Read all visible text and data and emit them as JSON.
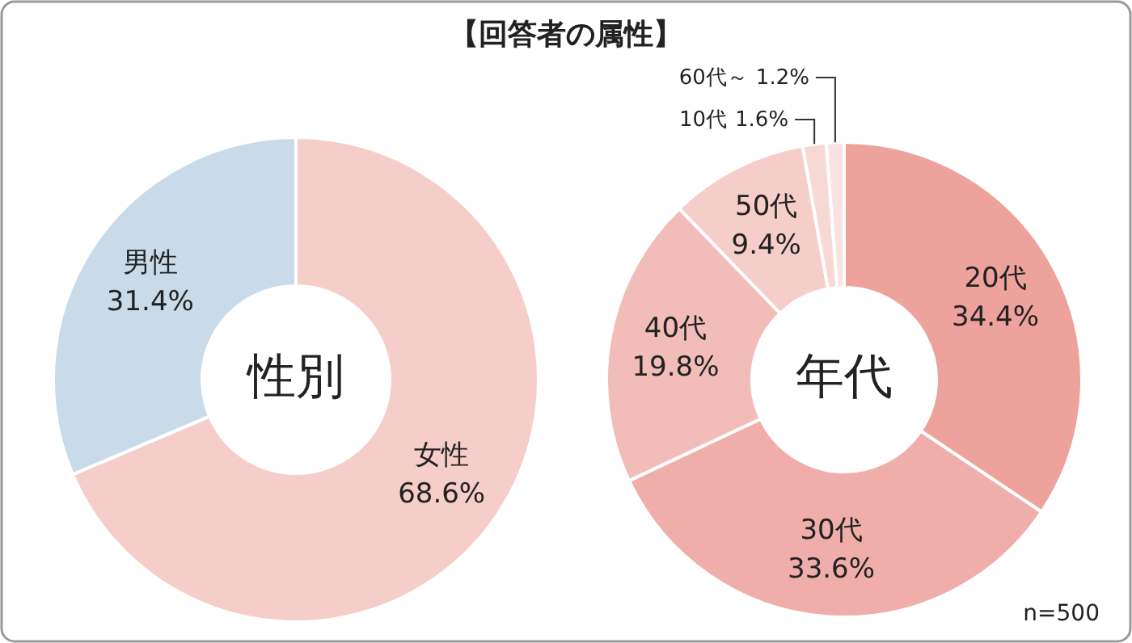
{
  "chart_data": [
    {
      "type": "donut",
      "title": "性別",
      "annotations": [
        "【回答者の属性】"
      ],
      "categories": [
        "女性",
        "男性"
      ],
      "values": [
        68.6,
        31.4
      ],
      "colors": [
        "#f5cdc9",
        "#c9dbe8"
      ],
      "value_labels": [
        "68.6%",
        "31.4%"
      ]
    },
    {
      "type": "donut",
      "title": "年代",
      "annotations": [
        "n=500"
      ],
      "categories": [
        "20代",
        "30代",
        "40代",
        "50代",
        "10代",
        "60代～"
      ],
      "values": [
        34.4,
        33.6,
        19.8,
        9.4,
        1.6,
        1.2
      ],
      "colors": [
        "#eda29b",
        "#efaeaa",
        "#f2bdb8",
        "#f5cdc9",
        "#f7d8d5",
        "#f9e3e1"
      ],
      "value_labels": [
        "34.4%",
        "33.6%",
        "19.8%",
        "9.4%",
        "1.6%",
        "1.2%"
      ]
    }
  ]
}
